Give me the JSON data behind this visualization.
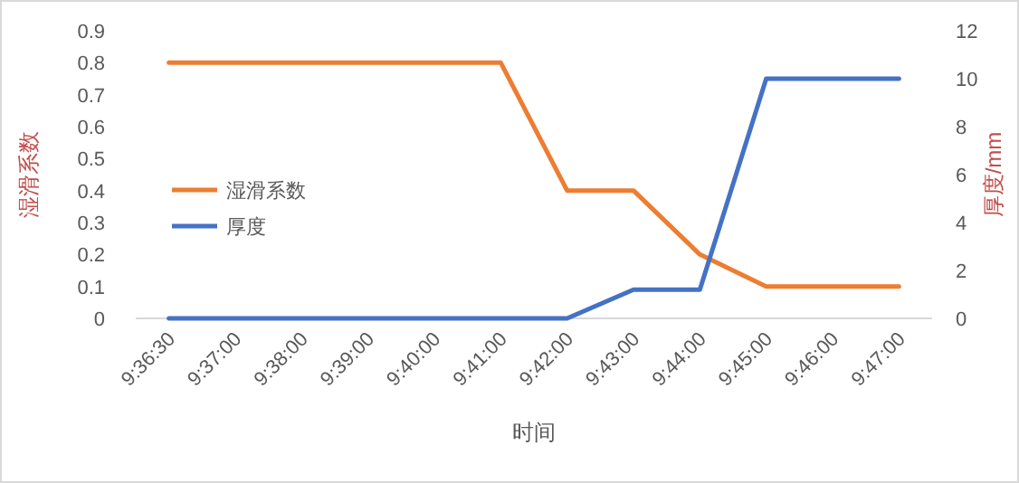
{
  "chart_data": {
    "type": "line",
    "xlabel": "时间",
    "ylabel": "湿滑系数",
    "y2label": "厚度/mm",
    "categories": [
      "9:36:30",
      "9:37:00",
      "9:38:00",
      "9:39:00",
      "9:40:00",
      "9:41:00",
      "9:42:00",
      "9:43:00",
      "9:44:00",
      "9:45:00",
      "9:46:00",
      "9:47:00"
    ],
    "series": [
      {
        "name": "湿滑系数",
        "color": "#ed7d31",
        "values": [
          0.8,
          0.8,
          0.8,
          0.8,
          0.8,
          0.8,
          0.4,
          0.4,
          0.2,
          0.1,
          0.1,
          0.1
        ]
      },
      {
        "name": "厚度",
        "color": "#4472c4",
        "axis": "y2",
        "values": [
          0,
          0,
          0,
          0,
          0,
          0,
          0,
          1.2,
          1.2,
          10,
          10,
          10
        ]
      }
    ],
    "ylim": [
      0,
      0.9
    ],
    "yticks": [
      0,
      0.1,
      0.2,
      0.3,
      0.4,
      0.5,
      0.6,
      0.7,
      0.8,
      0.9
    ],
    "y2lim": [
      0,
      12
    ],
    "y2ticks": [
      0,
      2,
      4,
      6,
      8,
      10,
      12
    ],
    "grid": false,
    "legend": "left",
    "marker": "none",
    "line_style": "solid"
  }
}
